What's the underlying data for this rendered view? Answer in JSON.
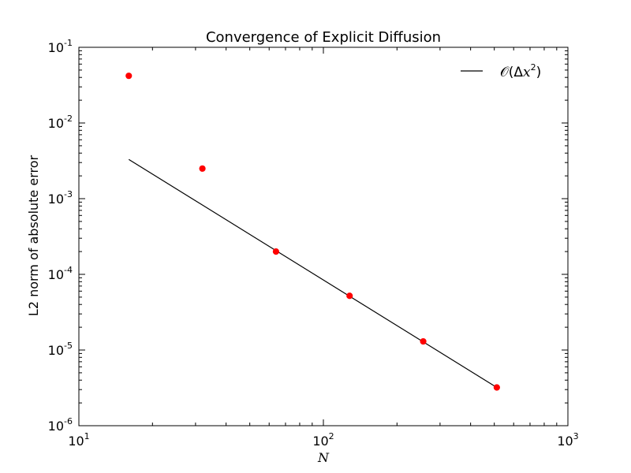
{
  "chart_data": {
    "type": "scatter",
    "title": "Convergence of Explicit Diffusion",
    "xlabel": "N",
    "ylabel": "L2 norm of absolute error",
    "xscale": "log",
    "yscale": "log",
    "xlim": [
      10,
      1000
    ],
    "ylim": [
      1e-06,
      0.1
    ],
    "grid": false,
    "legend_position": "top-right",
    "x_ticks": [
      {
        "value": 10,
        "base": "10",
        "exp": "1"
      },
      {
        "value": 100,
        "base": "10",
        "exp": "2"
      },
      {
        "value": 1000,
        "base": "10",
        "exp": "3"
      }
    ],
    "y_ticks": [
      {
        "value": 1e-06,
        "base": "10",
        "exp": "-6"
      },
      {
        "value": 1e-05,
        "base": "10",
        "exp": "-5"
      },
      {
        "value": 0.0001,
        "base": "10",
        "exp": "-4"
      },
      {
        "value": 0.001,
        "base": "10",
        "exp": "-3"
      },
      {
        "value": 0.01,
        "base": "10",
        "exp": "-2"
      },
      {
        "value": 0.1,
        "base": "10",
        "exp": "-1"
      }
    ],
    "series": [
      {
        "kind": "scatter",
        "color": "#ff0000",
        "x": [
          16,
          32,
          64,
          128,
          256,
          512
        ],
        "y": [
          0.042,
          0.0025,
          0.0002,
          5.2e-05,
          1.3e-05,
          3.2e-06
        ]
      },
      {
        "kind": "line",
        "name": "O(Δx²)",
        "color": "#000000",
        "x": [
          16,
          512
        ],
        "y": [
          0.0033,
          3.2e-06
        ]
      }
    ],
    "legend": {
      "label_prefix": "𝒪(Δ",
      "label_var": "x",
      "label_exp": "2",
      "label_suffix": ")"
    }
  }
}
